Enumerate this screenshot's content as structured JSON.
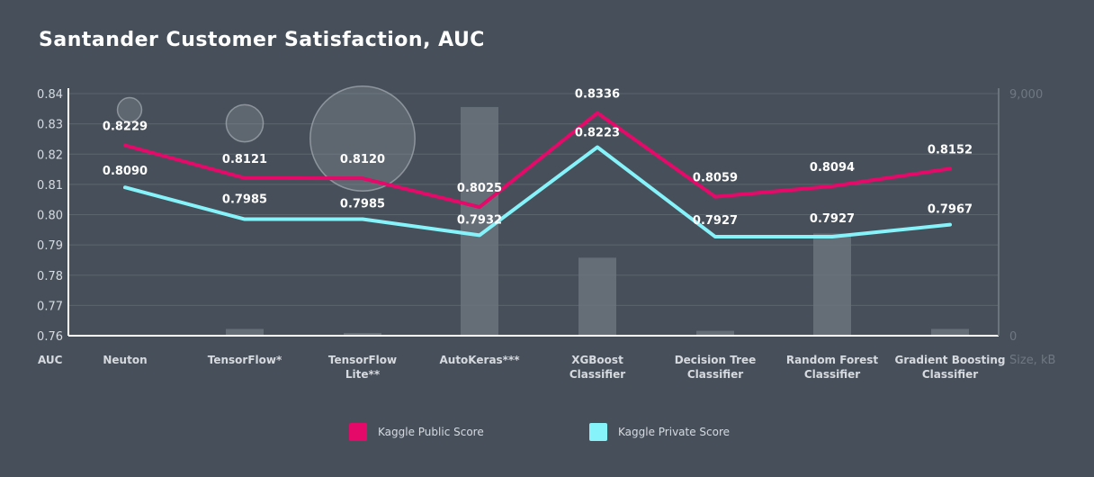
{
  "chart_data": {
    "type": "line",
    "title": "Santander Customer Satisfaction, AUC",
    "xlabel": "AUC",
    "ylabel_right": "Size, kB",
    "categories": [
      [
        "Neuton"
      ],
      [
        "TensorFlow*"
      ],
      [
        "TensorFlow",
        "Lite**"
      ],
      [
        "AutoKeras***"
      ],
      [
        "XGBoost",
        "Classifier"
      ],
      [
        "Decision Tree",
        "Classifier"
      ],
      [
        "Random Forest",
        "Classifier"
      ],
      [
        "Gradient Boosting",
        "Classifier"
      ]
    ],
    "ylim": [
      0.76,
      0.84
    ],
    "yticks": [
      "0.84",
      "0.83",
      "0.82",
      "0.81",
      "0.80",
      "0.79",
      "0.78",
      "0.77",
      "0.76"
    ],
    "y2lim": [
      0,
      9000
    ],
    "y2ticks": [
      "9,000",
      "0"
    ],
    "grid": true,
    "legend_position": "bottom",
    "series": [
      {
        "name": "Kaggle Public Score",
        "color": "#e5096a",
        "values": [
          0.8229,
          0.8121,
          0.812,
          0.8025,
          0.8336,
          0.8059,
          0.8094,
          0.8152
        ],
        "labels": [
          "0.8229",
          "0.8121",
          "0.8120",
          "0.8025",
          "0.8336",
          "0.8059",
          "0.8094",
          "0.8152"
        ]
      },
      {
        "name": "Kaggle Private Score",
        "color": "#86f3fb",
        "values": [
          0.809,
          0.7985,
          0.7985,
          0.7932,
          0.8223,
          0.7927,
          0.7927,
          0.7967
        ],
        "labels": [
          "0.8090",
          "0.7985",
          "0.7985",
          "0.7932",
          "0.8223",
          "0.7927",
          "0.7927",
          "0.7967"
        ]
      }
    ],
    "size_bars": {
      "color": "#6b737c",
      "values_kb": [
        30,
        250,
        100,
        8500,
        2900,
        180,
        3800,
        250
      ]
    },
    "size_bubbles": {
      "color": "#8a929a",
      "values_kb": [
        150,
        350,
        2800,
        0,
        0,
        0,
        0,
        0
      ]
    }
  }
}
